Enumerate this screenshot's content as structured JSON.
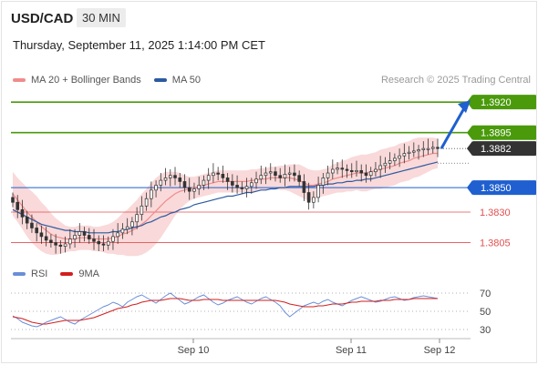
{
  "header": {
    "symbol": "USD/CAD",
    "timeframe": "30 MIN",
    "datetime": "Thursday, September 11, 2025 1:14:00 PM CET"
  },
  "legend": {
    "ma20_label": "MA 20 + Bollinger Bands",
    "ma50_label": "MA 50",
    "credit": "Research © 2025 Trading Central"
  },
  "rsi_legend": {
    "rsi_label": "RSI",
    "ma_label": "9MA"
  },
  "colors": {
    "green": "#4a9a0c",
    "blue": "#1f5fcf",
    "red": "#e05050",
    "dark": "#333333",
    "band_fill": "#f6c9c9",
    "ma20": "#f08c8c",
    "ma50": "#2c5aa0",
    "rsi": "#6a8fd8",
    "rsi_ma": "#d21f1f"
  },
  "chart_data": {
    "type": "candlestick",
    "ylim": [
      1.3795,
      1.3935
    ],
    "levels": [
      {
        "label": "1.3920",
        "value": 1.392,
        "kind": "resistance"
      },
      {
        "label": "1.3895",
        "value": 1.3895,
        "kind": "resistance"
      },
      {
        "label": "1.3882",
        "value": 1.3882,
        "kind": "current"
      },
      {
        "label": "1.3850",
        "value": 1.385,
        "kind": "pivot"
      },
      {
        "label": "1.3830",
        "value": 1.383,
        "kind": "support"
      },
      {
        "label": "1.3805",
        "value": 1.3805,
        "kind": "support"
      }
    ],
    "x_ticks": [
      "Sep 10",
      "Sep 11",
      "Sep 12"
    ],
    "close": [
      1.3838,
      1.3832,
      1.3826,
      1.3821,
      1.3817,
      1.3813,
      1.381,
      1.3807,
      1.3805,
      1.3803,
      1.3802,
      1.3804,
      1.3808,
      1.3811,
      1.3814,
      1.3811,
      1.3808,
      1.3806,
      1.3804,
      1.3803,
      1.3806,
      1.381,
      1.3813,
      1.3816,
      1.3818,
      1.3822,
      1.3828,
      1.3835,
      1.3841,
      1.3848,
      1.3852,
      1.3856,
      1.3858,
      1.386,
      1.3858,
      1.3855,
      1.385,
      1.3847,
      1.3849,
      1.3852,
      1.3856,
      1.386,
      1.3862,
      1.3861,
      1.3858,
      1.3855,
      1.3852,
      1.385,
      1.3849,
      1.3851,
      1.3854,
      1.3857,
      1.386,
      1.3862,
      1.3863,
      1.386,
      1.3858,
      1.3861,
      1.3862,
      1.386,
      1.3855,
      1.3846,
      1.3838,
      1.3842,
      1.3852,
      1.3858,
      1.3862,
      1.3865,
      1.3866,
      1.3865,
      1.3864,
      1.3863,
      1.3864,
      1.3862,
      1.386,
      1.3863,
      1.3865,
      1.3868,
      1.387,
      1.3872,
      1.3874,
      1.3876,
      1.3878,
      1.3879,
      1.388,
      1.3881,
      1.3882,
      1.3882,
      1.3883,
      1.3882
    ],
    "ma20": [
      1.3845,
      1.384,
      1.3835,
      1.383,
      1.3826,
      1.3822,
      1.3818,
      1.3815,
      1.3812,
      1.381,
      1.3809,
      1.3808,
      1.3808,
      1.3808,
      1.3809,
      1.3809,
      1.3809,
      1.3808,
      1.3808,
      1.3808,
      1.3808,
      1.3809,
      1.381,
      1.3812,
      1.3813,
      1.3815,
      1.3817,
      1.382,
      1.3823,
      1.3827,
      1.3831,
      1.3835,
      1.3839,
      1.3842,
      1.3845,
      1.3847,
      1.3848,
      1.3849,
      1.385,
      1.3851,
      1.3852,
      1.3853,
      1.3854,
      1.3855,
      1.3855,
      1.3855,
      1.3855,
      1.3855,
      1.3855,
      1.3855,
      1.3856,
      1.3856,
      1.3857,
      1.3857,
      1.3858,
      1.3858,
      1.3858,
      1.3858,
      1.3858,
      1.3857,
      1.3856,
      1.3854,
      1.3852,
      1.3852,
      1.3853,
      1.3854,
      1.3855,
      1.3857,
      1.3858,
      1.3859,
      1.386,
      1.3861,
      1.3862,
      1.3862,
      1.3862,
      1.3863,
      1.3864,
      1.3865,
      1.3866,
      1.3867,
      1.3868,
      1.387,
      1.3871,
      1.3872,
      1.3874,
      1.3875,
      1.3876,
      1.3877,
      1.3878,
      1.3878
    ],
    "ma50": [
      1.3832,
      1.383,
      1.3828,
      1.3826,
      1.3824,
      1.3822,
      1.382,
      1.3819,
      1.3818,
      1.3817,
      1.3816,
      1.3815,
      1.3815,
      1.3814,
      1.3814,
      1.3814,
      1.3813,
      1.3813,
      1.3813,
      1.3813,
      1.3813,
      1.3814,
      1.3814,
      1.3815,
      1.3816,
      1.3817,
      1.3818,
      1.3819,
      1.3821,
      1.3822,
      1.3824,
      1.3826,
      1.3827,
      1.3829,
      1.383,
      1.3832,
      1.3833,
      1.3834,
      1.3836,
      1.3837,
      1.3838,
      1.3839,
      1.384,
      1.3841,
      1.3842,
      1.3843,
      1.3843,
      1.3844,
      1.3845,
      1.3846,
      1.3846,
      1.3847,
      1.3848,
      1.3848,
      1.3849,
      1.3849,
      1.385,
      1.385,
      1.3851,
      1.3851,
      1.3851,
      1.3851,
      1.3851,
      1.3851,
      1.3852,
      1.3852,
      1.3853,
      1.3853,
      1.3854,
      1.3854,
      1.3855,
      1.3855,
      1.3856,
      1.3856,
      1.3857,
      1.3857,
      1.3858,
      1.3859,
      1.386,
      1.3861,
      1.3862,
      1.3863,
      1.3864,
      1.3865,
      1.3866,
      1.3867,
      1.3868,
      1.3869,
      1.387,
      1.3871
    ],
    "band_width": [
      0.0018,
      0.0018,
      0.0019,
      0.002,
      0.0021,
      0.0021,
      0.002,
      0.0019,
      0.0017,
      0.0015,
      0.0013,
      0.0011,
      0.001,
      0.001,
      0.001,
      0.001,
      0.001,
      0.001,
      0.001,
      0.0011,
      0.0012,
      0.0013,
      0.0015,
      0.0017,
      0.0019,
      0.0021,
      0.0023,
      0.0025,
      0.0026,
      0.0027,
      0.0027,
      0.0026,
      0.0024,
      0.0021,
      0.0018,
      0.0015,
      0.0012,
      0.001,
      0.0009,
      0.0009,
      0.0009,
      0.0009,
      0.0009,
      0.0009,
      0.0009,
      0.0009,
      0.0009,
      0.0009,
      0.0009,
      0.0009,
      0.0009,
      0.0009,
      0.0009,
      0.0009,
      0.0009,
      0.0009,
      0.001,
      0.001,
      0.0011,
      0.0012,
      0.0013,
      0.0013,
      0.0013,
      0.0012,
      0.0011,
      0.0011,
      0.0011,
      0.0012,
      0.0012,
      0.0013,
      0.0013,
      0.0014,
      0.0014,
      0.0015,
      0.0015,
      0.0015,
      0.0015,
      0.0016,
      0.0016,
      0.0016,
      0.0016,
      0.0016,
      0.0016,
      0.0016,
      0.0016,
      0.0016,
      0.0015,
      0.0014,
      0.0013,
      0.0012
    ],
    "projection": {
      "from": 1.3882,
      "to": 1.392
    },
    "rsi": {
      "levels": [
        70,
        50,
        30
      ],
      "ylim": [
        20,
        80
      ],
      "values": [
        45,
        42,
        38,
        36,
        34,
        33,
        35,
        38,
        40,
        42,
        44,
        41,
        38,
        36,
        40,
        43,
        46,
        49,
        52,
        55,
        57,
        60,
        58,
        55,
        60,
        63,
        66,
        68,
        65,
        62,
        59,
        63,
        67,
        70,
        66,
        62,
        58,
        60,
        63,
        66,
        68,
        64,
        60,
        57,
        59,
        62,
        64,
        66,
        63,
        60,
        58,
        61,
        64,
        66,
        63,
        60,
        56,
        49,
        44,
        48,
        52,
        56,
        58,
        60,
        58,
        61,
        63,
        60,
        58,
        56,
        59,
        62,
        64,
        66,
        64,
        62,
        60,
        61,
        63,
        65,
        66,
        64,
        62,
        63,
        65,
        66,
        67,
        66,
        65,
        64
      ],
      "ma": [
        44,
        43,
        42,
        40,
        38,
        37,
        36,
        36,
        37,
        38,
        39,
        40,
        40,
        40,
        40,
        41,
        42,
        43,
        45,
        47,
        49,
        51,
        53,
        54,
        55,
        57,
        58,
        60,
        61,
        62,
        62,
        62,
        63,
        64,
        64,
        64,
        63,
        62,
        62,
        62,
        63,
        63,
        63,
        63,
        62,
        62,
        62,
        62,
        62,
        62,
        62,
        62,
        62,
        62,
        62,
        62,
        61,
        60,
        58,
        57,
        56,
        55,
        55,
        55,
        56,
        56,
        57,
        58,
        58,
        58,
        59,
        60,
        60,
        61,
        61,
        61,
        61,
        62,
        62,
        62,
        63,
        63,
        63,
        63,
        64,
        64,
        64,
        64,
        64,
        64
      ]
    }
  }
}
